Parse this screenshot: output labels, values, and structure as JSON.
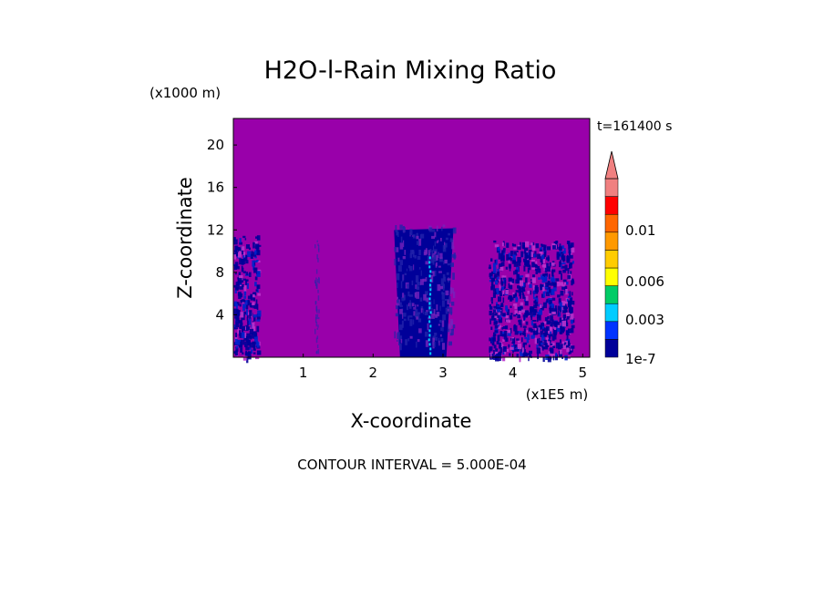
{
  "chart_data": {
    "type": "heatmap",
    "title": "H2O-l-Rain Mixing Ratio",
    "time_label": "t=161400 s",
    "xlabel": "X-coordinate",
    "ylabel": "Z-coordinate",
    "x_unit": "(x1E5 m)",
    "y_unit": "(x1000 m)",
    "footer": "CONTOUR INTERVAL = 5.000E-04",
    "xlim": [
      0,
      5.1
    ],
    "ylim": [
      0,
      22.5
    ],
    "x_ticks": [
      1,
      2,
      3,
      4,
      5
    ],
    "y_ticks": [
      4,
      8,
      12,
      16,
      20
    ],
    "background_color": "#9900aa",
    "colorbar": {
      "levels": [
        "1e-7",
        "0.0005",
        "0.001",
        "0.0015",
        "0.002",
        "0.0025",
        "0.003",
        "0.0035",
        "0.004",
        "0.0045",
        "0.005",
        "0.0055",
        "0.006",
        "0.0065",
        "0.007",
        "0.0075",
        "0.008",
        "0.0085",
        "0.009",
        "0.0095",
        "0.01"
      ],
      "colors": [
        "#000099",
        "#0033ff",
        "#00ccff",
        "#00cc66",
        "#ffff00",
        "#ffcc00",
        "#ff9900",
        "#ff6600",
        "#ff0000",
        "#f08080"
      ],
      "labels": [
        {
          "text": "1e-7",
          "value": 0
        },
        {
          "text": "0.003",
          "value": 0.003
        },
        {
          "text": "0.006",
          "value": 0.006
        },
        {
          "text": "0.01",
          "value": 0.01
        }
      ]
    },
    "rain_regions": [
      {
        "x_start": 0.0,
        "x_end": 0.35,
        "z_top": 11.5,
        "intensity": "scattered"
      },
      {
        "x_start": 1.1,
        "x_end": 1.25,
        "z_top": 11.5,
        "intensity": "faint"
      },
      {
        "x_start": 2.3,
        "x_end": 3.15,
        "z_top": 12.5,
        "intensity": "dense",
        "core_x": 2.8,
        "core_color": "#00ccff"
      },
      {
        "x_start": 3.65,
        "x_end": 4.85,
        "z_top": 11.0,
        "intensity": "scattered"
      }
    ]
  }
}
